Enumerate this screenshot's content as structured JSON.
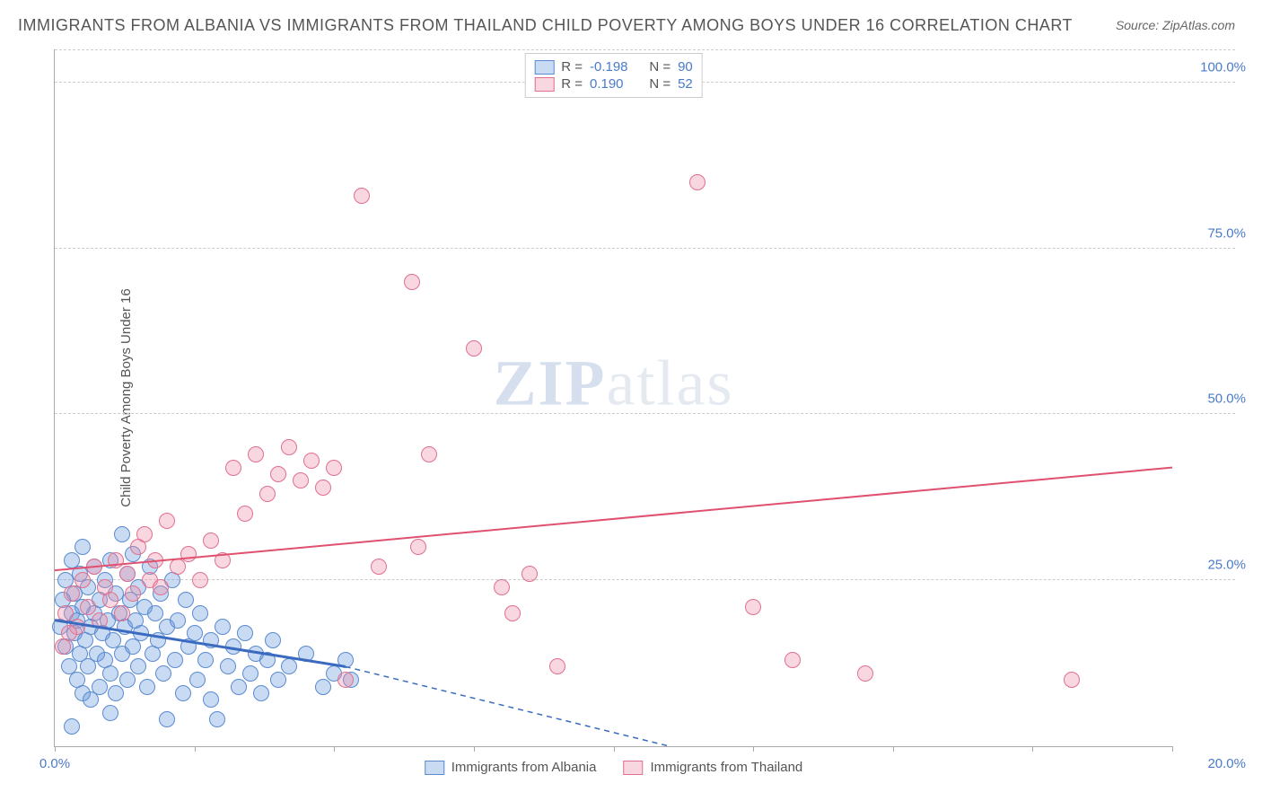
{
  "title": "IMMIGRANTS FROM ALBANIA VS IMMIGRANTS FROM THAILAND CHILD POVERTY AMONG BOYS UNDER 16 CORRELATION CHART",
  "source": "Source: ZipAtlas.com",
  "y_axis_label": "Child Poverty Among Boys Under 16",
  "watermark_zip": "ZIP",
  "watermark_atlas": "atlas",
  "chart": {
    "type": "scatter",
    "xlim": [
      0,
      20
    ],
    "ylim": [
      0,
      105
    ],
    "x_ticks": [
      0,
      2.5,
      5,
      7.5,
      10,
      12.5,
      15,
      17.5,
      20
    ],
    "x_tick_labels": {
      "0": "0.0%",
      "20": "20.0%"
    },
    "y_ticks": [
      25,
      50,
      75,
      100
    ],
    "y_tick_labels": {
      "25": "25.0%",
      "50": "50.0%",
      "75": "75.0%",
      "100": "100.0%"
    },
    "background_color": "#ffffff",
    "grid_color": "#cccccc",
    "marker_radius": 9,
    "series": [
      {
        "name": "Immigrants from Albania",
        "fill": "rgba(100,150,220,0.35)",
        "stroke": "#5a8bd0",
        "R": "-0.198",
        "N": "90",
        "trend": {
          "x1": 0,
          "y1": 19,
          "x2": 5.2,
          "y2": 12,
          "dash_x2": 11,
          "dash_y2": 0,
          "color": "#3a6bc0",
          "width": 3
        },
        "points": [
          [
            0.1,
            18
          ],
          [
            0.15,
            22
          ],
          [
            0.2,
            25
          ],
          [
            0.2,
            15
          ],
          [
            0.25,
            12
          ],
          [
            0.3,
            20
          ],
          [
            0.3,
            28
          ],
          [
            0.35,
            17
          ],
          [
            0.35,
            23
          ],
          [
            0.4,
            10
          ],
          [
            0.4,
            19
          ],
          [
            0.45,
            14
          ],
          [
            0.45,
            26
          ],
          [
            0.5,
            8
          ],
          [
            0.5,
            21
          ],
          [
            0.5,
            30
          ],
          [
            0.55,
            16
          ],
          [
            0.6,
            12
          ],
          [
            0.6,
            24
          ],
          [
            0.65,
            18
          ],
          [
            0.65,
            7
          ],
          [
            0.7,
            20
          ],
          [
            0.7,
            27
          ],
          [
            0.75,
            14
          ],
          [
            0.8,
            22
          ],
          [
            0.8,
            9
          ],
          [
            0.85,
            17
          ],
          [
            0.9,
            25
          ],
          [
            0.9,
            13
          ],
          [
            0.95,
            19
          ],
          [
            1.0,
            28
          ],
          [
            1.0,
            11
          ],
          [
            1.05,
            16
          ],
          [
            1.1,
            23
          ],
          [
            1.1,
            8
          ],
          [
            1.15,
            20
          ],
          [
            1.2,
            14
          ],
          [
            1.2,
            32
          ],
          [
            1.25,
            18
          ],
          [
            1.3,
            26
          ],
          [
            1.3,
            10
          ],
          [
            1.35,
            22
          ],
          [
            1.4,
            15
          ],
          [
            1.4,
            29
          ],
          [
            1.45,
            19
          ],
          [
            1.5,
            12
          ],
          [
            1.5,
            24
          ],
          [
            1.55,
            17
          ],
          [
            1.6,
            21
          ],
          [
            1.65,
            9
          ],
          [
            1.7,
            27
          ],
          [
            1.75,
            14
          ],
          [
            1.8,
            20
          ],
          [
            1.85,
            16
          ],
          [
            1.9,
            23
          ],
          [
            1.95,
            11
          ],
          [
            2.0,
            18
          ],
          [
            2.0,
            4
          ],
          [
            2.1,
            25
          ],
          [
            2.15,
            13
          ],
          [
            2.2,
            19
          ],
          [
            2.3,
            8
          ],
          [
            2.35,
            22
          ],
          [
            2.4,
            15
          ],
          [
            2.5,
            17
          ],
          [
            2.55,
            10
          ],
          [
            2.6,
            20
          ],
          [
            2.7,
            13
          ],
          [
            2.8,
            7
          ],
          [
            2.8,
            16
          ],
          [
            2.9,
            4
          ],
          [
            3.0,
            18
          ],
          [
            3.1,
            12
          ],
          [
            3.2,
            15
          ],
          [
            3.3,
            9
          ],
          [
            3.4,
            17
          ],
          [
            3.5,
            11
          ],
          [
            3.6,
            14
          ],
          [
            3.7,
            8
          ],
          [
            3.8,
            13
          ],
          [
            3.9,
            16
          ],
          [
            4.0,
            10
          ],
          [
            4.2,
            12
          ],
          [
            4.5,
            14
          ],
          [
            4.8,
            9
          ],
          [
            5.0,
            11
          ],
          [
            5.2,
            13
          ],
          [
            5.3,
            10
          ],
          [
            0.3,
            3
          ],
          [
            1.0,
            5
          ]
        ]
      },
      {
        "name": "Immigrants from Thailand",
        "fill": "rgba(235,140,165,0.35)",
        "stroke": "#e0708f",
        "R": "0.190",
        "N": "52",
        "trend": {
          "x1": 0,
          "y1": 26.5,
          "x2": 20,
          "y2": 42,
          "color": "#e0506f",
          "width": 2
        },
        "points": [
          [
            0.2,
            20
          ],
          [
            0.3,
            23
          ],
          [
            0.4,
            18
          ],
          [
            0.5,
            25
          ],
          [
            0.6,
            21
          ],
          [
            0.7,
            27
          ],
          [
            0.8,
            19
          ],
          [
            0.9,
            24
          ],
          [
            1.0,
            22
          ],
          [
            1.1,
            28
          ],
          [
            1.2,
            20
          ],
          [
            1.3,
            26
          ],
          [
            1.4,
            23
          ],
          [
            1.5,
            30
          ],
          [
            1.6,
            32
          ],
          [
            1.7,
            25
          ],
          [
            1.8,
            28
          ],
          [
            1.9,
            24
          ],
          [
            2.0,
            34
          ],
          [
            2.2,
            27
          ],
          [
            2.4,
            29
          ],
          [
            2.6,
            25
          ],
          [
            2.8,
            31
          ],
          [
            3.0,
            28
          ],
          [
            3.2,
            42
          ],
          [
            3.4,
            35
          ],
          [
            3.6,
            44
          ],
          [
            3.8,
            38
          ],
          [
            4.0,
            41
          ],
          [
            4.2,
            45
          ],
          [
            4.4,
            40
          ],
          [
            4.6,
            43
          ],
          [
            4.8,
            39
          ],
          [
            5.0,
            42
          ],
          [
            5.2,
            10
          ],
          [
            5.5,
            83
          ],
          [
            5.8,
            27
          ],
          [
            6.4,
            70
          ],
          [
            6.5,
            30
          ],
          [
            6.7,
            44
          ],
          [
            7.5,
            60
          ],
          [
            8.0,
            24
          ],
          [
            8.2,
            20
          ],
          [
            8.5,
            26
          ],
          [
            9.0,
            12
          ],
          [
            11.5,
            85
          ],
          [
            12.5,
            21
          ],
          [
            13.2,
            13
          ],
          [
            14.5,
            11
          ],
          [
            18.2,
            10
          ],
          [
            0.15,
            15
          ],
          [
            0.25,
            17
          ]
        ]
      }
    ]
  },
  "legend_bottom": [
    {
      "label": "Immigrants from Albania",
      "fill": "rgba(100,150,220,0.35)",
      "stroke": "#5a8bd0"
    },
    {
      "label": "Immigrants from Thailand",
      "fill": "rgba(235,140,165,0.35)",
      "stroke": "#e0708f"
    }
  ]
}
